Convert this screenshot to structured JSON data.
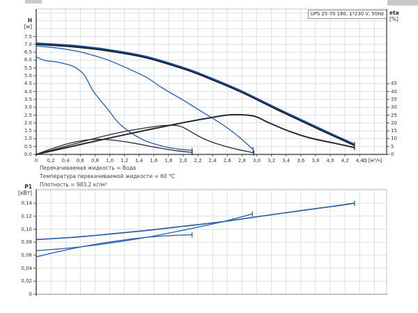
{
  "top_chart": {
    "title_box": "UPS 25-70 180, 1*230 V, 50Hz",
    "h_axis_name": "H",
    "h_axis_unit": "[м]",
    "eta_axis_name": "eta",
    "eta_axis_unit": "[%]",
    "q_axis_label": "Q [м³/ч]"
  },
  "notes": {
    "lines": [
      "Перекачиваемая жидкость = Вода",
      "Температура перекачиваемой жидкости = 60 °C",
      "Плотность = 983.2 кг/м³"
    ]
  },
  "bottom_chart": {
    "p1_axis_name": "P1",
    "p1_axis_unit": "[кВт]"
  },
  "colors": {
    "grid": "#dcdfe3",
    "axis_dark": "#4a4f55",
    "border_light": "#c3c7cb",
    "curve_blue": "#2e66ac",
    "curve_blue_dark": "#1c4e96",
    "curve_shadow": "#1a1c1f",
    "eta_black": "#26282c",
    "tick_text": "#33363f"
  },
  "chart_data": [
    {
      "type": "line",
      "title": "UPS 25-70 180, 1*230 V, 50Hz",
      "xlabel": "Q [м³/ч]",
      "ylabel": "H [м]",
      "y2label": "eta [%]",
      "xlim": [
        0,
        4.77
      ],
      "ylim": [
        0,
        9.25
      ],
      "y2lim": [
        0,
        92.5
      ],
      "grid": true,
      "legend": "none",
      "x_ticks": {
        "step": 0.2,
        "values": [
          0,
          0.2,
          0.4,
          0.6,
          0.8,
          1,
          1.2,
          1.4,
          1.6,
          1.8,
          2,
          2.2,
          2.4,
          2.6,
          2.8,
          3,
          3.2,
          3.4,
          3.6,
          3.8,
          4,
          4.2,
          4.4
        ],
        "labels": [
          "0",
          "0,2",
          "0,4",
          "0,6",
          "0,8",
          "1,0",
          "1,2",
          "1,4",
          "1,6",
          "1,8",
          "2,0",
          "2,2",
          "2,4",
          "2,6",
          "2,8",
          "3,0",
          "3,2",
          "3,4",
          "3,6",
          "3,8",
          "4,0",
          "4,2",
          "4,4"
        ]
      },
      "y_ticks": {
        "step": 0.5,
        "values": [
          0,
          0.5,
          1,
          1.5,
          2,
          2.5,
          3,
          3.5,
          4,
          4.5,
          5,
          5.5,
          6,
          6.5,
          7,
          7.5
        ],
        "labels": [
          "0.0",
          "0.5",
          "1.0",
          "1.5",
          "2.0",
          "2.5",
          "3.0",
          "3.5",
          "4.0",
          "4.5",
          "5.0",
          "5.5",
          "6.0",
          "6.5",
          "7.0",
          "7.5"
        ]
      },
      "y2_ticks": {
        "step": 5,
        "values": [
          0,
          5,
          10,
          15,
          20,
          25,
          30,
          35,
          40,
          45
        ],
        "labels": [
          "0",
          "5",
          "10",
          "15",
          "20",
          "25",
          "30",
          "35",
          "40",
          "45"
        ]
      },
      "series": [
        {
          "name": "head-speed-3",
          "yaxis": "y",
          "width": 2,
          "color": "#1c4e96",
          "shadow_dy": 1.5,
          "points": [
            [
              0,
              7.08
            ],
            [
              0.5,
              6.93
            ],
            [
              1.0,
              6.65
            ],
            [
              1.5,
              6.22
            ],
            [
              2.05,
              5.45
            ],
            [
              2.4,
              4.82
            ],
            [
              2.8,
              4.02
            ],
            [
              3.3,
              2.88
            ],
            [
              3.7,
              2.0
            ],
            [
              4.0,
              1.35
            ],
            [
              4.33,
              0.65
            ]
          ]
        },
        {
          "name": "head-speed-2",
          "yaxis": "y",
          "width": 1.4,
          "color": "#2e66ac",
          "points": [
            [
              0,
              6.9
            ],
            [
              0.3,
              6.76
            ],
            [
              0.6,
              6.52
            ],
            [
              0.94,
              6.06
            ],
            [
              1.25,
              5.46
            ],
            [
              1.5,
              4.9
            ],
            [
              1.72,
              4.22
            ],
            [
              2.0,
              3.45
            ],
            [
              2.19,
              2.9
            ],
            [
              2.56,
              1.82
            ],
            [
              2.76,
              1.1
            ],
            [
              2.95,
              0.32
            ]
          ]
        },
        {
          "name": "head-speed-1",
          "yaxis": "y",
          "width": 1.4,
          "color": "#2e66ac",
          "points": [
            [
              0,
              6.2
            ],
            [
              0.12,
              5.98
            ],
            [
              0.3,
              5.86
            ],
            [
              0.5,
              5.6
            ],
            [
              0.65,
              5.07
            ],
            [
              0.78,
              4.0
            ],
            [
              0.97,
              2.9
            ],
            [
              1.15,
              1.87
            ],
            [
              1.44,
              0.96
            ],
            [
              1.72,
              0.52
            ],
            [
              1.95,
              0.33
            ],
            [
              2.12,
              0.26
            ]
          ]
        },
        {
          "name": "eta-speed-3",
          "yaxis": "y2",
          "width": 2,
          "color": "#26282c",
          "points": [
            [
              0,
              0
            ],
            [
              0.4,
              4.2
            ],
            [
              0.8,
              8.4
            ],
            [
              1.2,
              12.5
            ],
            [
              1.6,
              16.4
            ],
            [
              2.0,
              20.2
            ],
            [
              2.35,
              23.2
            ],
            [
              2.65,
              25.2
            ],
            [
              2.95,
              24.5
            ],
            [
              3.15,
              20.5
            ],
            [
              3.4,
              15.5
            ],
            [
              3.7,
              10.8
            ],
            [
              4.05,
              7.2
            ],
            [
              4.33,
              4.4
            ]
          ]
        },
        {
          "name": "eta-speed-2",
          "yaxis": "y2",
          "width": 1.3,
          "color": "#26282c",
          "points": [
            [
              0,
              0
            ],
            [
              0.35,
              4.5
            ],
            [
              0.7,
              9.0
            ],
            [
              1.1,
              13.6
            ],
            [
              1.45,
              16.6
            ],
            [
              1.75,
              18.4
            ],
            [
              1.95,
              18.0
            ],
            [
              2.1,
              14.5
            ],
            [
              2.3,
              9.5
            ],
            [
              2.6,
              4.8
            ],
            [
              2.96,
              1.0
            ]
          ]
        },
        {
          "name": "eta-speed-1",
          "yaxis": "y2",
          "width": 1.3,
          "color": "#26282c",
          "points": [
            [
              0,
              0
            ],
            [
              0.2,
              3.4
            ],
            [
              0.4,
              6.4
            ],
            [
              0.6,
              8.6
            ],
            [
              0.8,
              9.6
            ],
            [
              1.0,
              9.3
            ],
            [
              1.3,
              7.4
            ],
            [
              1.6,
              4.7
            ],
            [
              1.9,
              2.4
            ],
            [
              2.12,
              1.3
            ]
          ]
        }
      ]
    },
    {
      "type": "line",
      "title": "",
      "xlabel": "",
      "ylabel": "P1 [кВт]",
      "xlim": [
        0,
        4.77
      ],
      "ylim": [
        0,
        0.1615
      ],
      "grid": true,
      "legend": "none",
      "x_ticks": {
        "step": 0.2,
        "values": [],
        "labels": []
      },
      "y_ticks": {
        "step": 0.02,
        "values": [
          0,
          0.02,
          0.04,
          0.06,
          0.08,
          0.1,
          0.12,
          0.14
        ],
        "labels": [
          "0",
          "0,02",
          "0,04",
          "0,06",
          "0,08",
          "0,10",
          "0,12",
          "0,14"
        ]
      },
      "series": [
        {
          "name": "power-speed-3",
          "yaxis": "y",
          "width": 1.7,
          "color": "#275da4",
          "points": [
            [
              0,
              0.084
            ],
            [
              0.5,
              0.0875
            ],
            [
              1.0,
              0.0925
            ],
            [
              1.5,
              0.098
            ],
            [
              2.0,
              0.1045
            ],
            [
              2.5,
              0.111
            ],
            [
              3.0,
              0.119
            ],
            [
              3.5,
              0.127
            ],
            [
              4.0,
              0.1345
            ],
            [
              4.33,
              0.14
            ]
          ]
        },
        {
          "name": "power-speed-2",
          "yaxis": "y",
          "width": 1.4,
          "color": "#2e66ac",
          "points": [
            [
              0,
              0.067
            ],
            [
              0.4,
              0.0705
            ],
            [
              0.8,
              0.0755
            ],
            [
              1.2,
              0.082
            ],
            [
              1.6,
              0.0895
            ],
            [
              2.0,
              0.0985
            ],
            [
              2.5,
              0.1105
            ],
            [
              2.94,
              0.1235
            ]
          ]
        },
        {
          "name": "power-speed-1",
          "yaxis": "y",
          "width": 1.4,
          "color": "#2e66ac",
          "points": [
            [
              0,
              0.0575
            ],
            [
              0.3,
              0.0655
            ],
            [
              0.6,
              0.0725
            ],
            [
              0.9,
              0.0785
            ],
            [
              1.2,
              0.0835
            ],
            [
              1.5,
              0.0875
            ],
            [
              1.8,
              0.09
            ],
            [
              2.12,
              0.0915
            ]
          ]
        }
      ]
    }
  ]
}
